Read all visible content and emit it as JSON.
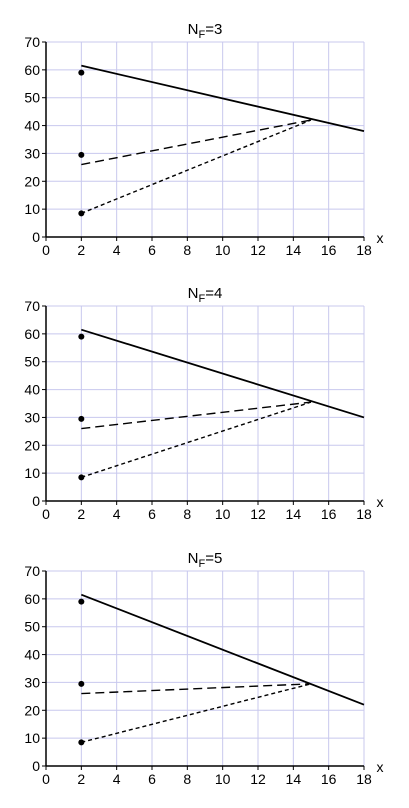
{
  "chart_data": [
    {
      "type": "line",
      "title": {
        "main": "N",
        "sub": "F",
        "suffix": "=3"
      },
      "xlabel": "x",
      "xlim": [
        0,
        18
      ],
      "ylim": [
        0,
        70
      ],
      "xticks": [
        0,
        2,
        4,
        6,
        8,
        10,
        12,
        14,
        16,
        18
      ],
      "yticks": [
        0,
        10,
        20,
        30,
        40,
        50,
        60,
        70
      ],
      "grid": true,
      "series": [
        {
          "style": "solid",
          "x": [
            2,
            18
          ],
          "y": [
            61.5,
            38
          ]
        },
        {
          "style": "long-dash",
          "x": [
            2,
            15
          ],
          "y": [
            26,
            42
          ]
        },
        {
          "style": "short-dash",
          "x": [
            2,
            15
          ],
          "y": [
            8.5,
            42
          ]
        }
      ],
      "points": {
        "x": [
          2,
          2,
          2
        ],
        "y": [
          59,
          29.5,
          8.5
        ]
      }
    },
    {
      "type": "line",
      "title": {
        "main": "N",
        "sub": "F",
        "suffix": "=4"
      },
      "xlabel": "x",
      "xlim": [
        0,
        18
      ],
      "ylim": [
        0,
        70
      ],
      "xticks": [
        0,
        2,
        4,
        6,
        8,
        10,
        12,
        14,
        16,
        18
      ],
      "yticks": [
        0,
        10,
        20,
        30,
        40,
        50,
        60,
        70
      ],
      "grid": true,
      "series": [
        {
          "style": "solid",
          "x": [
            2,
            18
          ],
          "y": [
            61.5,
            30
          ]
        },
        {
          "style": "long-dash",
          "x": [
            2,
            15
          ],
          "y": [
            26,
            35.5
          ]
        },
        {
          "style": "short-dash",
          "x": [
            2,
            15
          ],
          "y": [
            8.5,
            35.5
          ]
        }
      ],
      "points": {
        "x": [
          2,
          2,
          2
        ],
        "y": [
          59,
          29.5,
          8.5
        ]
      }
    },
    {
      "type": "line",
      "title": {
        "main": "N",
        "sub": "F",
        "suffix": "=5"
      },
      "xlabel": "x",
      "xlim": [
        0,
        18
      ],
      "ylim": [
        0,
        70
      ],
      "xticks": [
        0,
        2,
        4,
        6,
        8,
        10,
        12,
        14,
        16,
        18
      ],
      "yticks": [
        0,
        10,
        20,
        30,
        40,
        50,
        60,
        70
      ],
      "grid": true,
      "series": [
        {
          "style": "solid",
          "x": [
            2,
            18
          ],
          "y": [
            61.5,
            22
          ]
        },
        {
          "style": "long-dash",
          "x": [
            2,
            15
          ],
          "y": [
            26,
            29.5
          ]
        },
        {
          "style": "short-dash",
          "x": [
            2,
            15
          ],
          "y": [
            8.5,
            29.5
          ]
        }
      ],
      "points": {
        "x": [
          2,
          2,
          2
        ],
        "y": [
          59,
          29.5,
          8.5
        ]
      }
    }
  ],
  "colors": {
    "grid": "#c8c8ee",
    "axis": "#000000",
    "line": "#000000",
    "background": "#ffffff"
  }
}
